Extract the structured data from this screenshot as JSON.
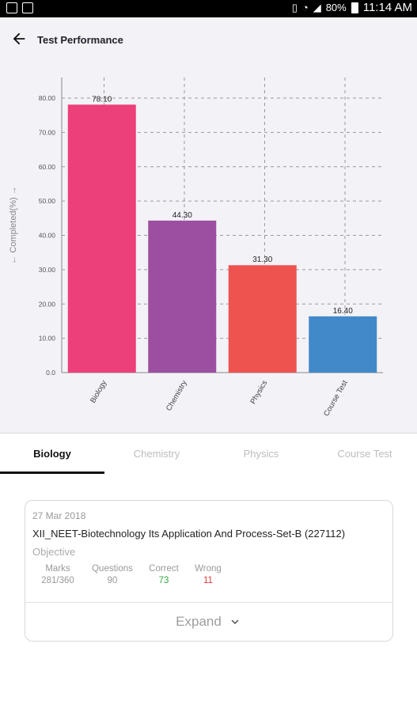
{
  "status_bar": {
    "battery": "80%",
    "time": "11:14 AM",
    "icons": [
      "image-icon",
      "image-icon",
      "vibrate-icon",
      "wifi-icon",
      "signal-icon",
      "battery-icon"
    ]
  },
  "header": {
    "title": "Test Performance",
    "back_icon": "arrow-left-icon"
  },
  "chart_data": {
    "type": "bar",
    "categories": [
      "Biology",
      "Chemistry",
      "Physics",
      "Course Test"
    ],
    "values": [
      78.1,
      44.3,
      31.3,
      16.4
    ],
    "value_labels": [
      "78.10",
      "44.30",
      "31.30",
      "16.40"
    ],
    "colors": [
      "#ec407a",
      "#9c4fa0",
      "#ef5350",
      "#4289c9"
    ],
    "ylabel": "← Completed(%) →",
    "xlabel": "",
    "yticks": [
      "0.0",
      "10.00",
      "20.00",
      "30.00",
      "40.00",
      "50.00",
      "60.00",
      "70.00",
      "80.00"
    ],
    "ylim": [
      0,
      86
    ],
    "grid": true
  },
  "tabs": [
    {
      "label": "Biology",
      "active": true
    },
    {
      "label": "Chemistry",
      "active": false
    },
    {
      "label": "Physics",
      "active": false
    },
    {
      "label": "Course Test",
      "active": false
    }
  ],
  "card": {
    "date": "27 Mar 2018",
    "test_name": "XII_NEET-Biotechnology Its Application And Process-Set-B (227112)",
    "type": "Objective",
    "stats": [
      {
        "label": "Marks",
        "value": "281/360",
        "color": "#999999"
      },
      {
        "label": "Questions",
        "value": "90",
        "color": "#999999"
      },
      {
        "label": "Correct",
        "value": "73",
        "color": "#3aa845"
      },
      {
        "label": "Wrong",
        "value": "11",
        "color": "#e53935"
      }
    ],
    "expand_label": "Expand",
    "expand_icon": "chevron-down-icon"
  }
}
